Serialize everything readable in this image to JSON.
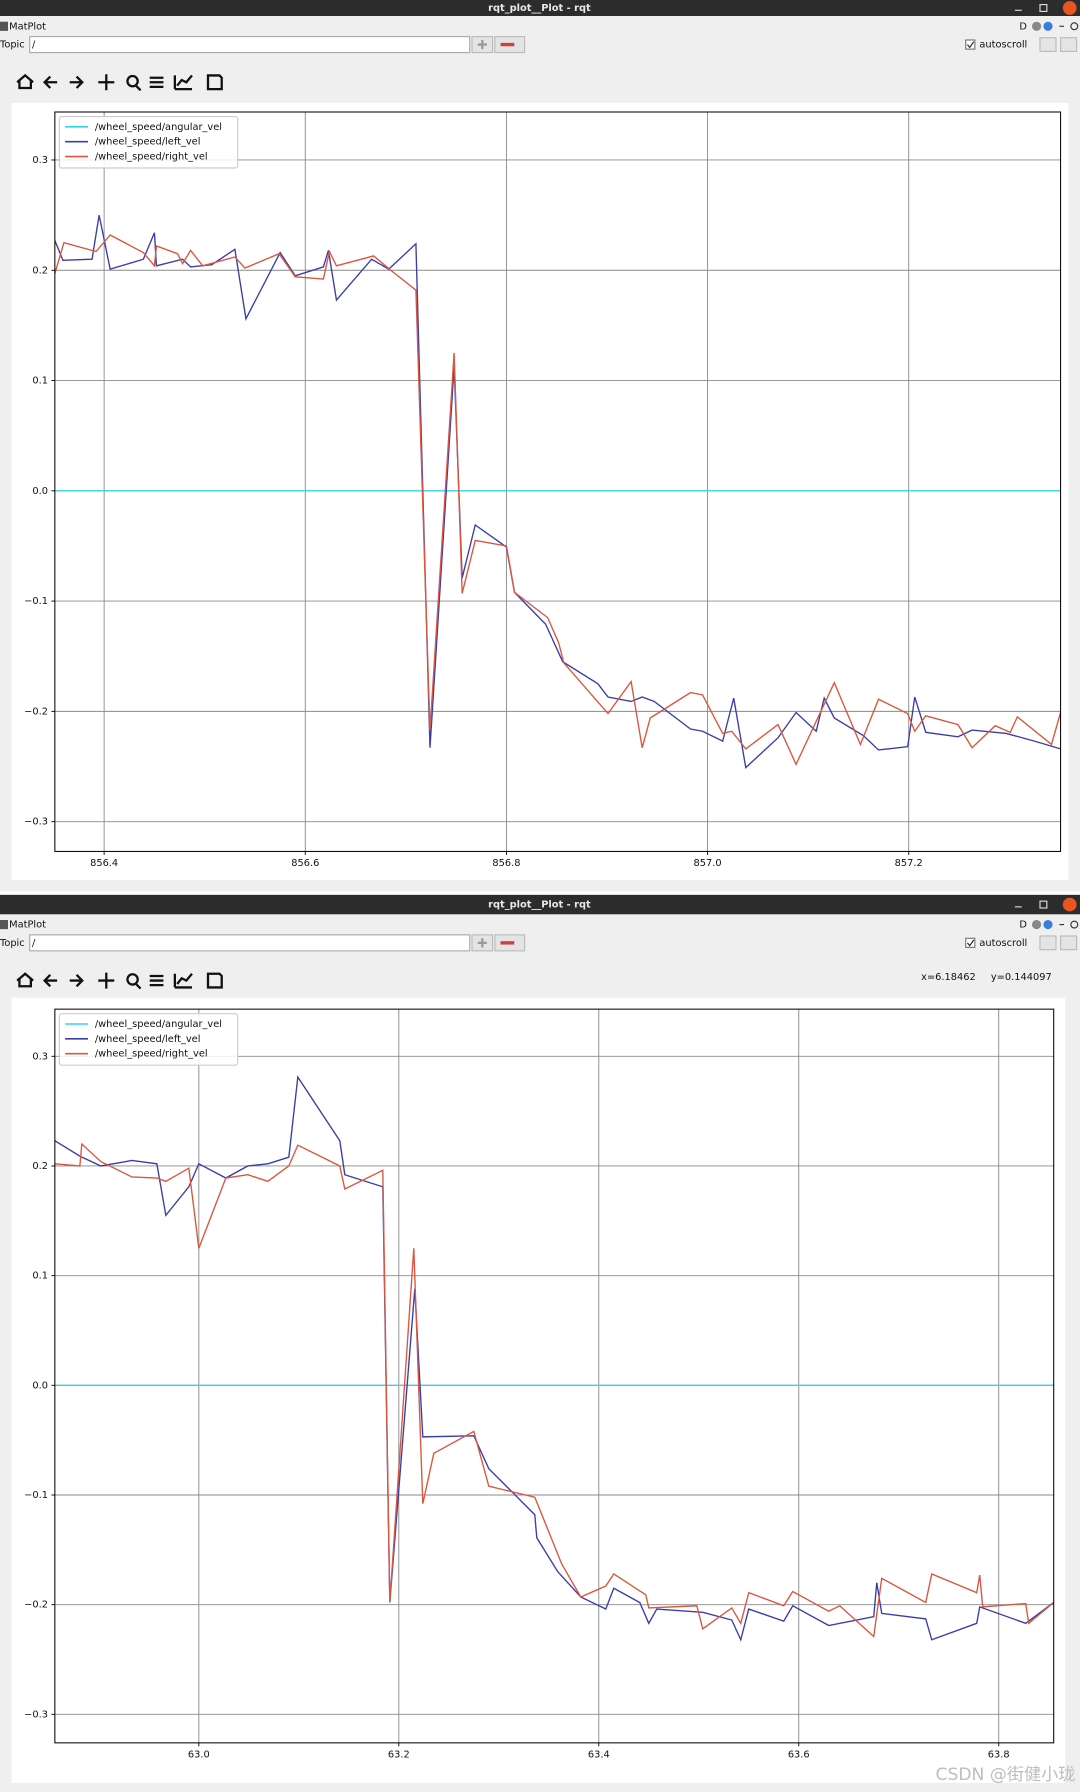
{
  "windows": [
    {
      "title": "rqt_plot__Plot - rqt",
      "menu": "MatPlot",
      "dock_label": "D",
      "topic_label": "Topic",
      "topic_value": "/",
      "autoscroll": "autoscroll"
    },
    {
      "title": "rqt_plot__Plot - rqt",
      "menu": "MatPlot",
      "dock_label": "D",
      "topic_label": "Topic",
      "topic_value": "/",
      "autoscroll": "autoscroll",
      "cursor_x": "x=6.18462",
      "cursor_y": "y=0.144097"
    }
  ],
  "watermark": "CSDN @街健小珑",
  "chart_data": [
    {
      "type": "line",
      "grid": true,
      "legend": "upper left",
      "xlim": [
        856.351,
        857.351
      ],
      "ylim": [
        -0.327,
        0.3435
      ],
      "xticks": [
        856.4,
        856.6,
        856.8,
        {
          "value": 857.0,
          "label": "857.0"
        },
        857.2
      ],
      "yticks": [
        {
          "value": -0.3,
          "label": "−0.3"
        },
        {
          "value": -0.2,
          "label": "−0.2"
        },
        {
          "value": -0.1,
          "label": "−0.1"
        },
        {
          "value": 0,
          "label": "0.0"
        },
        0.1,
        0.2,
        0.3
      ],
      "series": [
        {
          "name": "/wheel_speed/angular_vel",
          "color": "#33d6e6",
          "x": [
            856.351,
            857.351
          ],
          "values": [
            0,
            0
          ]
        },
        {
          "name": "/wheel_speed/left_vel",
          "color": "#3a3fa8",
          "x": [
            856.351,
            856.359,
            856.388,
            856.395,
            856.406,
            856.439,
            856.45,
            856.452,
            856.478,
            856.486,
            856.507,
            856.53,
            856.541,
            856.575,
            856.59,
            856.618,
            856.623,
            856.631,
            856.666,
            856.683,
            856.71,
            856.724,
            856.748,
            856.756,
            856.769,
            856.8,
            856.808,
            856.839,
            856.856,
            856.891,
            856.901,
            856.924,
            856.935,
            856.947,
            856.983,
            856.995,
            857.015,
            857.026,
            857.038,
            857.07,
            857.088,
            857.108,
            857.116,
            857.126,
            857.155,
            857.17,
            857.199,
            857.206,
            857.217,
            857.249,
            857.263,
            857.297,
            857.325,
            857.351
          ],
          "values": [
            0.227,
            0.209,
            0.21,
            0.25,
            0.201,
            0.21,
            0.234,
            0.204,
            0.21,
            0.203,
            0.205,
            0.219,
            0.156,
            0.216,
            0.195,
            0.203,
            0.218,
            0.173,
            0.21,
            0.201,
            0.224,
            -0.233,
            0.113,
            -0.079,
            -0.031,
            -0.051,
            -0.092,
            -0.121,
            -0.155,
            -0.175,
            -0.187,
            -0.191,
            -0.187,
            -0.191,
            -0.216,
            -0.218,
            -0.227,
            -0.188,
            -0.251,
            -0.224,
            -0.201,
            -0.218,
            -0.188,
            -0.206,
            -0.222,
            -0.235,
            -0.232,
            -0.187,
            -0.219,
            -0.223,
            -0.217,
            -0.22,
            -0.227,
            -0.234
          ]
        },
        {
          "name": "/wheel_speed/right_vel",
          "color": "#d9573f",
          "x": [
            856.351,
            856.36,
            856.392,
            856.406,
            856.439,
            856.45,
            856.452,
            856.473,
            856.478,
            856.486,
            856.498,
            856.53,
            856.54,
            856.574,
            856.59,
            856.618,
            856.624,
            856.631,
            856.668,
            856.685,
            856.71,
            856.724,
            856.748,
            856.756,
            856.769,
            856.8,
            856.808,
            856.841,
            856.852,
            856.857,
            856.901,
            856.924,
            856.935,
            856.943,
            856.983,
            856.995,
            857.015,
            857.024,
            857.038,
            857.07,
            857.088,
            857.126,
            857.152,
            857.17,
            857.199,
            857.206,
            857.217,
            857.249,
            857.263,
            857.286,
            857.301,
            857.308,
            857.342,
            857.351
          ],
          "values": [
            0.197,
            0.225,
            0.217,
            0.232,
            0.216,
            0.204,
            0.222,
            0.215,
            0.206,
            0.218,
            0.204,
            0.212,
            0.202,
            0.215,
            0.194,
            0.192,
            0.217,
            0.204,
            0.213,
            0.2,
            0.182,
            -0.217,
            0.125,
            -0.093,
            -0.045,
            -0.05,
            -0.092,
            -0.115,
            -0.138,
            -0.156,
            -0.202,
            -0.173,
            -0.233,
            -0.206,
            -0.183,
            -0.185,
            -0.22,
            -0.218,
            -0.234,
            -0.212,
            -0.248,
            -0.174,
            -0.23,
            -0.189,
            -0.202,
            -0.218,
            -0.204,
            -0.212,
            -0.233,
            -0.213,
            -0.219,
            -0.205,
            -0.23,
            -0.201
          ]
        }
      ]
    },
    {
      "type": "line",
      "grid": true,
      "legend": "upper left",
      "xlim": [
        62.856,
        63.855
      ],
      "ylim": [
        -0.326,
        0.343
      ],
      "xticks": [
        {
          "value": 63.0,
          "label": "63.0"
        },
        63.2,
        63.4,
        63.6,
        63.8
      ],
      "yticks": [
        {
          "value": -0.3,
          "label": "−0.3"
        },
        {
          "value": -0.2,
          "label": "−0.2"
        },
        {
          "value": -0.1,
          "label": "−0.1"
        },
        {
          "value": 0,
          "label": "0.0"
        },
        0.1,
        0.2,
        0.3
      ],
      "series": [
        {
          "name": "/wheel_speed/angular_vel",
          "color": "#33d6e6",
          "x": [
            62.856,
            63.855
          ],
          "values": [
            0,
            0
          ]
        },
        {
          "name": "/wheel_speed/left_vel",
          "color": "#3a3fa8",
          "x": [
            62.856,
            62.881,
            62.902,
            62.933,
            62.958,
            62.967,
            62.99,
            63.0,
            63.027,
            63.049,
            63.069,
            63.09,
            63.099,
            63.141,
            63.146,
            63.184,
            63.191,
            63.216,
            63.224,
            63.275,
            63.29,
            63.313,
            63.336,
            63.338,
            63.359,
            63.382,
            63.407,
            63.415,
            63.441,
            63.45,
            63.458,
            63.504,
            63.533,
            63.542,
            63.55,
            63.585,
            63.594,
            63.63,
            63.675,
            63.678,
            63.683,
            63.727,
            63.733,
            63.778,
            63.781,
            63.827,
            63.855
          ],
          "values": [
            0.223,
            0.209,
            0.2,
            0.205,
            0.202,
            0.155,
            0.181,
            0.202,
            0.189,
            0.2,
            0.202,
            0.208,
            0.281,
            0.223,
            0.192,
            0.181,
            -0.198,
            0.088,
            -0.047,
            -0.046,
            -0.076,
            -0.097,
            -0.118,
            -0.139,
            -0.17,
            -0.193,
            -0.204,
            -0.185,
            -0.198,
            -0.217,
            -0.204,
            -0.207,
            -0.214,
            -0.232,
            -0.204,
            -0.215,
            -0.201,
            -0.219,
            -0.211,
            -0.18,
            -0.208,
            -0.213,
            -0.232,
            -0.217,
            -0.202,
            -0.217,
            -0.198
          ]
        },
        {
          "name": "/wheel_speed/right_vel",
          "color": "#d9573f",
          "x": [
            62.856,
            62.881,
            62.883,
            62.902,
            62.933,
            62.958,
            62.967,
            62.99,
            63.0,
            63.027,
            63.049,
            63.069,
            63.09,
            63.099,
            63.141,
            63.146,
            63.184,
            63.191,
            63.215,
            63.224,
            63.235,
            63.275,
            63.29,
            63.336,
            63.363,
            63.382,
            63.407,
            63.415,
            63.447,
            63.45,
            63.498,
            63.504,
            63.533,
            63.542,
            63.55,
            63.585,
            63.594,
            63.63,
            63.641,
            63.675,
            63.683,
            63.727,
            63.733,
            63.778,
            63.781,
            63.784,
            63.827,
            63.83,
            63.855
          ],
          "values": [
            0.202,
            0.2,
            0.22,
            0.204,
            0.19,
            0.189,
            0.186,
            0.198,
            0.125,
            0.189,
            0.192,
            0.186,
            0.2,
            0.219,
            0.2,
            0.179,
            0.196,
            -0.198,
            0.125,
            -0.108,
            -0.062,
            -0.042,
            -0.092,
            -0.102,
            -0.163,
            -0.193,
            -0.183,
            -0.172,
            -0.191,
            -0.203,
            -0.201,
            -0.222,
            -0.203,
            -0.217,
            -0.189,
            -0.201,
            -0.188,
            -0.206,
            -0.201,
            -0.229,
            -0.176,
            -0.198,
            -0.172,
            -0.189,
            -0.173,
            -0.202,
            -0.199,
            -0.217,
            -0.198
          ]
        }
      ]
    }
  ]
}
